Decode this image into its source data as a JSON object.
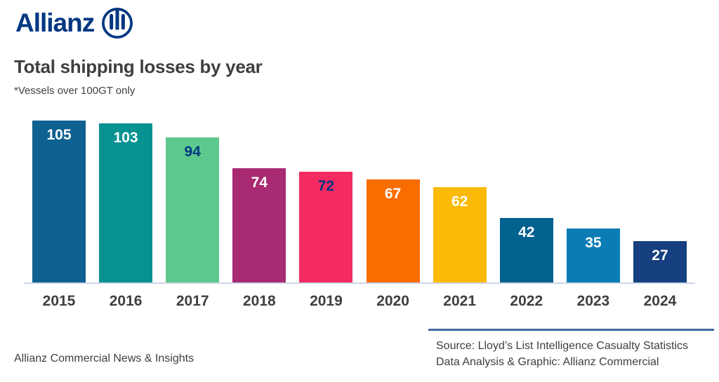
{
  "brand": {
    "logo_text": "Allianz",
    "logo_color": "#003781"
  },
  "header": {
    "title": "Total shipping losses by year",
    "subtitle": "*Vessels over 100GT only"
  },
  "chart_data": {
    "type": "bar",
    "title": "Total shipping losses by year",
    "note": "*Vessels over 100GT only",
    "categories": [
      "2015",
      "2016",
      "2017",
      "2018",
      "2019",
      "2020",
      "2021",
      "2022",
      "2023",
      "2024"
    ],
    "values": [
      105,
      103,
      94,
      74,
      72,
      67,
      62,
      42,
      35,
      27
    ],
    "bar_colors": [
      "#0e6190",
      "#079292",
      "#5dc88e",
      "#a82a72",
      "#f42a62",
      "#f96c00",
      "#fbba07",
      "#01618f",
      "#0b7cb5",
      "#153f7e"
    ],
    "label_colors": [
      "#ffffff",
      "#ffffff",
      "#003781",
      "#ffffff",
      "#003781",
      "#ffffff",
      "#ffffff",
      "#ffffff",
      "#ffffff",
      "#ffffff"
    ],
    "value_label_position": "inside-top",
    "xlabel": "",
    "ylabel": "",
    "ylim": [
      0,
      105
    ],
    "grid": false,
    "legend": "none",
    "axis_line_color": "#ccd6ea"
  },
  "footer": {
    "left_text": "Allianz Commercial News & Insights",
    "source_line1": "Source: Lloyd’s List Intelligence Casualty Statistics",
    "source_line2": "Data Analysis & Graphic: Allianz Commercial",
    "divider_color": "#41699e"
  }
}
